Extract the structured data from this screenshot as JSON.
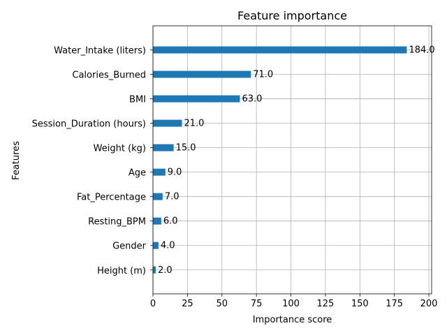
{
  "chart_data": {
    "type": "bar",
    "orientation": "horizontal",
    "title": "Feature importance",
    "xlabel": "Importance score",
    "ylabel": "Features",
    "categories": [
      "Water_Intake (liters)",
      "Calories_Burned",
      "BMI",
      "Session_Duration (hours)",
      "Weight (kg)",
      "Age",
      "Fat_Percentage",
      "Resting_BPM",
      "Gender",
      "Height (m)"
    ],
    "values": [
      184,
      71,
      63,
      21,
      15,
      9,
      7,
      6,
      4,
      2
    ],
    "value_labels": [
      "184.0",
      "71.0",
      "63.0",
      "21.0",
      "15.0",
      "9.0",
      "7.0",
      "6.0",
      "4.0",
      "2.0"
    ],
    "xlim": [
      0,
      202
    ],
    "xticks": [
      0,
      25,
      50,
      75,
      100,
      125,
      150,
      175,
      200
    ],
    "xtick_labels": [
      "0",
      "25",
      "50",
      "75",
      "100",
      "125",
      "150",
      "175",
      "200"
    ],
    "grid": true,
    "bar_color": "#1f77b4",
    "grid_color": "#b0b0b0",
    "legend": "none"
  }
}
